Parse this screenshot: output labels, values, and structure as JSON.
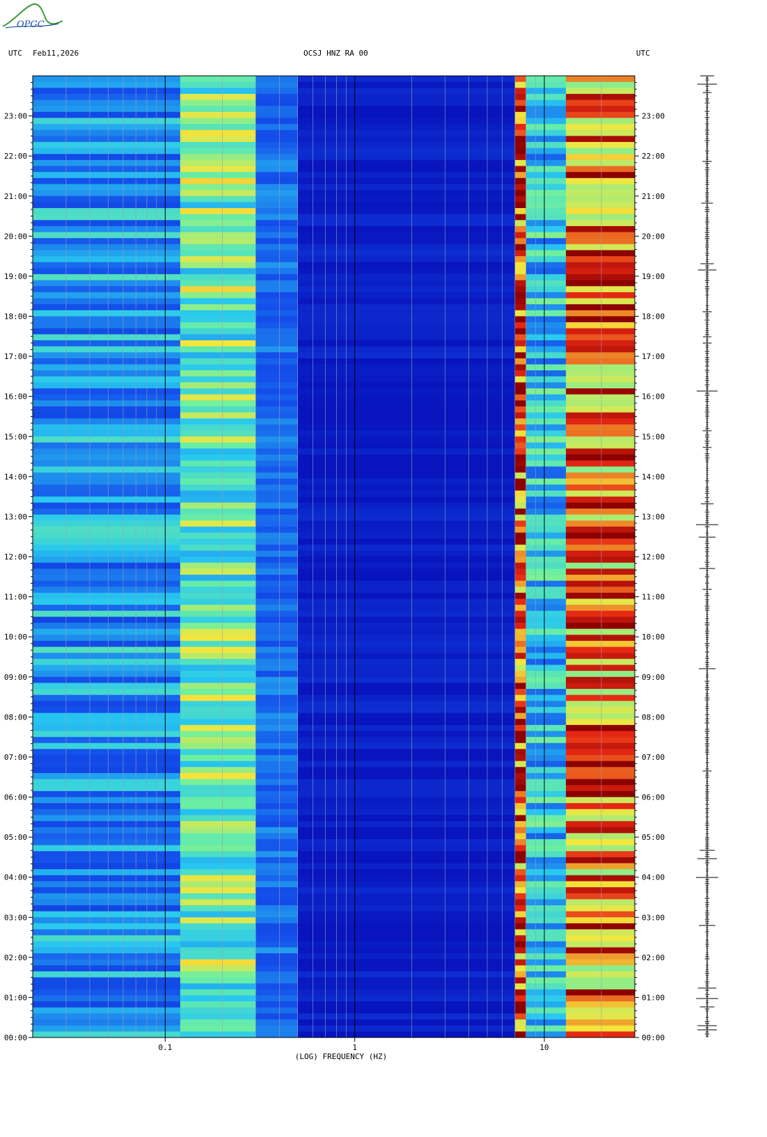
{
  "header": {
    "left_utc": "UTC",
    "date": "Feb11,2026",
    "station": "OCSJ HNZ RA 00",
    "right_utc": "UTC"
  },
  "logo_text": "OPGC",
  "colors": {
    "background_blue": "#0a1fc8",
    "low_blue": "#1234d8",
    "mid_blue": "#1e6cf0",
    "cyan": "#2ad6f0",
    "yellow": "#f5e93a",
    "dark_red": "#8c0000",
    "logo_green": "#3a9a3a",
    "logo_blue": "#1d4fa8"
  },
  "chart_data": {
    "type": "heatmap",
    "xlabel": "(LOG) FREQUENCY (HZ)",
    "x_scale": "log",
    "xlim": [
      0.02,
      30
    ],
    "x_ticks": [
      {
        "value": 0.1,
        "label": "0.1"
      },
      {
        "value": 1,
        "label": "1"
      },
      {
        "value": 10,
        "label": "10"
      }
    ],
    "y_ticks": [
      "00:00",
      "01:00",
      "02:00",
      "03:00",
      "04:00",
      "05:00",
      "06:00",
      "07:00",
      "08:00",
      "09:00",
      "10:00",
      "11:00",
      "12:00",
      "13:00",
      "14:00",
      "15:00",
      "16:00",
      "17:00",
      "18:00",
      "19:00",
      "20:00",
      "21:00",
      "22:00",
      "23:00"
    ],
    "ylim_hours": [
      0,
      24
    ],
    "bands": [
      {
        "from_hz": 0.02,
        "to_hz": 0.12,
        "level": 0.42
      },
      {
        "from_hz": 0.12,
        "to_hz": 0.3,
        "level": 0.62
      },
      {
        "from_hz": 0.3,
        "to_hz": 0.5,
        "level": 0.35
      },
      {
        "from_hz": 0.5,
        "to_hz": 7,
        "level": 0.05
      },
      {
        "from_hz": 7,
        "to_hz": 8,
        "level": 0.9
      },
      {
        "from_hz": 8,
        "to_hz": 13,
        "level": 0.5
      },
      {
        "from_hz": 13,
        "to_hz": 30,
        "level": 0.85
      }
    ]
  }
}
